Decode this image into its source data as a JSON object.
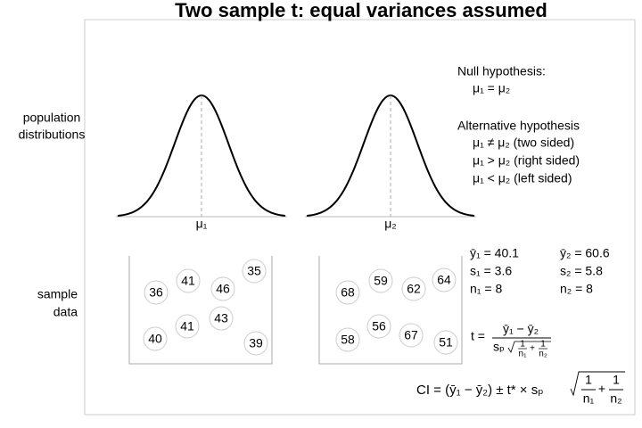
{
  "title": "Two sample t: equal variances assumed",
  "row_labels": {
    "population": [
      "population",
      "distributions"
    ],
    "sample": [
      "sample",
      "data"
    ]
  },
  "populations": [
    {
      "label": "μ₁"
    },
    {
      "label": "μ₂"
    }
  ],
  "hypotheses": {
    "null_heading": "Null hypothesis:",
    "null": "μ₁ = μ₂",
    "alt_heading": "Alternative hypothesis",
    "alternatives": [
      "μ₁ ≠ μ₂ (two sided)",
      "μ₁ > μ₂ (right sided)",
      "μ₁ < μ₂ (left sided)"
    ]
  },
  "samples": [
    {
      "values": [
        36,
        41,
        46,
        35,
        40,
        41,
        43,
        39
      ]
    },
    {
      "values": [
        68,
        59,
        62,
        64,
        58,
        56,
        67,
        51
      ]
    }
  ],
  "stats": [
    [
      "ȳ₁ = 40.1",
      "s₁ = 3.6",
      "n₁ = 8"
    ],
    [
      "ȳ₂ = 60.6",
      "s₂ = 5.8",
      "n₂ = 8"
    ]
  ],
  "formulas": {
    "t": {
      "lhs": "t =",
      "numerator": "ȳ₁ − ȳ₂",
      "factor": "sₚ",
      "one": "1",
      "n1": "n₁",
      "plus": "+",
      "n2": "n₂"
    },
    "ci": {
      "lhs": "CI = (ȳ₁ − ȳ₂) ± t* × sₚ",
      "one": "1",
      "n1": "n₁",
      "plus": "+",
      "n2": "n₂"
    }
  }
}
